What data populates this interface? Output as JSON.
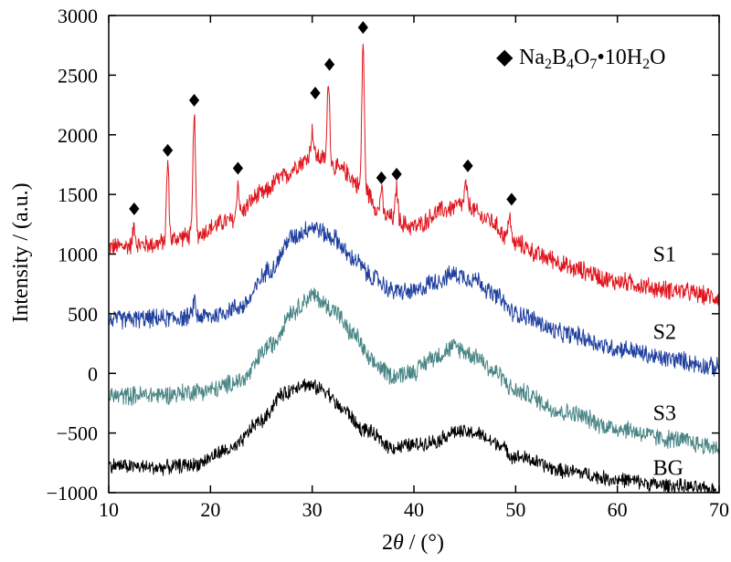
{
  "chart_data": {
    "type": "line",
    "xlabel_prefix": "2",
    "xlabel_symbol": "θ",
    "xlabel_suffix": " / (°)",
    "ylabel": "Intensity / (a.u.)",
    "xlim": [
      10,
      70
    ],
    "ylim": [
      -1000,
      3000
    ],
    "x_ticks": [
      10,
      20,
      30,
      40,
      50,
      60,
      70
    ],
    "y_ticks": [
      -1000,
      -500,
      0,
      500,
      1000,
      1500,
      2000,
      2500,
      3000
    ],
    "x_tick_labels": [
      "10",
      "20",
      "30",
      "40",
      "50",
      "60",
      "70"
    ],
    "y_tick_labels": [
      "−1000",
      "−500",
      "0",
      "500",
      "1000",
      "1500",
      "2000",
      "2500",
      "3000"
    ],
    "grid": false,
    "legend": {
      "position": "top-right",
      "symbol": "◆",
      "formula_parts": [
        {
          "t": "Na",
          "sub": false
        },
        {
          "t": "2",
          "sub": true
        },
        {
          "t": "B",
          "sub": false
        },
        {
          "t": "4",
          "sub": true
        },
        {
          "t": "O",
          "sub": false
        },
        {
          "t": "7",
          "sub": true
        },
        {
          "t": "•10H",
          "sub": false
        },
        {
          "t": "2",
          "sub": true
        },
        {
          "t": "O",
          "sub": false
        }
      ]
    },
    "series": [
      {
        "name": "S1",
        "color": "#e0161e",
        "label_x": 63.5,
        "label_y": 1000,
        "noise": 90,
        "points": [
          [
            10,
            1060
          ],
          [
            14,
            1080
          ],
          [
            18,
            1150
          ],
          [
            22,
            1280
          ],
          [
            25,
            1500
          ],
          [
            27,
            1640
          ],
          [
            29,
            1770
          ],
          [
            30,
            1840
          ],
          [
            31,
            1800
          ],
          [
            33,
            1700
          ],
          [
            35,
            1550
          ],
          [
            37,
            1320
          ],
          [
            40,
            1230
          ],
          [
            43,
            1370
          ],
          [
            45,
            1420
          ],
          [
            47,
            1300
          ],
          [
            50,
            1090
          ],
          [
            53,
            970
          ],
          [
            56,
            870
          ],
          [
            60,
            770
          ],
          [
            65,
            700
          ],
          [
            70,
            640
          ]
        ],
        "peaks": [
          [
            12.5,
            1250
          ],
          [
            15.8,
            1770
          ],
          [
            18.4,
            2190
          ],
          [
            22.7,
            1600
          ],
          [
            30.0,
            2040
          ],
          [
            31.6,
            2480
          ],
          [
            35.0,
            2780
          ],
          [
            36.8,
            1550
          ],
          [
            38.3,
            1560
          ],
          [
            45.1,
            1580
          ],
          [
            49.4,
            1350
          ]
        ]
      },
      {
        "name": "S2",
        "color": "#1f3f9f",
        "label_x": 63.5,
        "label_y": 350,
        "noise": 90,
        "points": [
          [
            10,
            450
          ],
          [
            15,
            460
          ],
          [
            20,
            480
          ],
          [
            23,
            560
          ],
          [
            26,
            880
          ],
          [
            28,
            1140
          ],
          [
            30,
            1230
          ],
          [
            32,
            1140
          ],
          [
            34,
            960
          ],
          [
            36,
            800
          ],
          [
            38,
            690
          ],
          [
            40,
            680
          ],
          [
            42,
            770
          ],
          [
            44,
            830
          ],
          [
            46,
            790
          ],
          [
            48,
            650
          ],
          [
            50,
            500
          ],
          [
            55,
            330
          ],
          [
            60,
            210
          ],
          [
            65,
            120
          ],
          [
            70,
            50
          ]
        ],
        "peaks": [
          [
            18.4,
            620
          ]
        ]
      },
      {
        "name": "S3",
        "color": "#4a8585",
        "label_x": 63.5,
        "label_y": -330,
        "noise": 90,
        "points": [
          [
            10,
            -190
          ],
          [
            15,
            -180
          ],
          [
            20,
            -140
          ],
          [
            23,
            -60
          ],
          [
            26,
            240
          ],
          [
            28,
            520
          ],
          [
            30,
            650
          ],
          [
            32,
            540
          ],
          [
            34,
            330
          ],
          [
            36,
            80
          ],
          [
            38,
            -20
          ],
          [
            40,
            20
          ],
          [
            42,
            140
          ],
          [
            44,
            220
          ],
          [
            46,
            150
          ],
          [
            48,
            10
          ],
          [
            50,
            -150
          ],
          [
            55,
            -330
          ],
          [
            60,
            -460
          ],
          [
            65,
            -550
          ],
          [
            70,
            -620
          ]
        ],
        "peaks": []
      },
      {
        "name": "BG",
        "color": "#000000",
        "label_x": 63.5,
        "label_y": -790,
        "noise": 70,
        "points": [
          [
            10,
            -770
          ],
          [
            15,
            -790
          ],
          [
            18,
            -770
          ],
          [
            22,
            -640
          ],
          [
            25,
            -400
          ],
          [
            27,
            -180
          ],
          [
            29,
            -90
          ],
          [
            31,
            -130
          ],
          [
            33,
            -300
          ],
          [
            35,
            -470
          ],
          [
            38,
            -620
          ],
          [
            40,
            -600
          ],
          [
            42,
            -570
          ],
          [
            44,
            -490
          ],
          [
            46,
            -500
          ],
          [
            48,
            -580
          ],
          [
            50,
            -700
          ],
          [
            55,
            -820
          ],
          [
            60,
            -890
          ],
          [
            65,
            -940
          ],
          [
            70,
            -980
          ]
        ],
        "peaks": []
      }
    ],
    "peak_markers": [
      {
        "x": 12.5,
        "y": 1380
      },
      {
        "x": 15.8,
        "y": 1870
      },
      {
        "x": 18.4,
        "y": 2290
      },
      {
        "x": 22.7,
        "y": 1720
      },
      {
        "x": 30.3,
        "y": 2350
      },
      {
        "x": 31.7,
        "y": 2590
      },
      {
        "x": 35.0,
        "y": 2900
      },
      {
        "x": 36.8,
        "y": 1640
      },
      {
        "x": 38.3,
        "y": 1670
      },
      {
        "x": 45.3,
        "y": 1740
      },
      {
        "x": 49.6,
        "y": 1460
      }
    ]
  }
}
